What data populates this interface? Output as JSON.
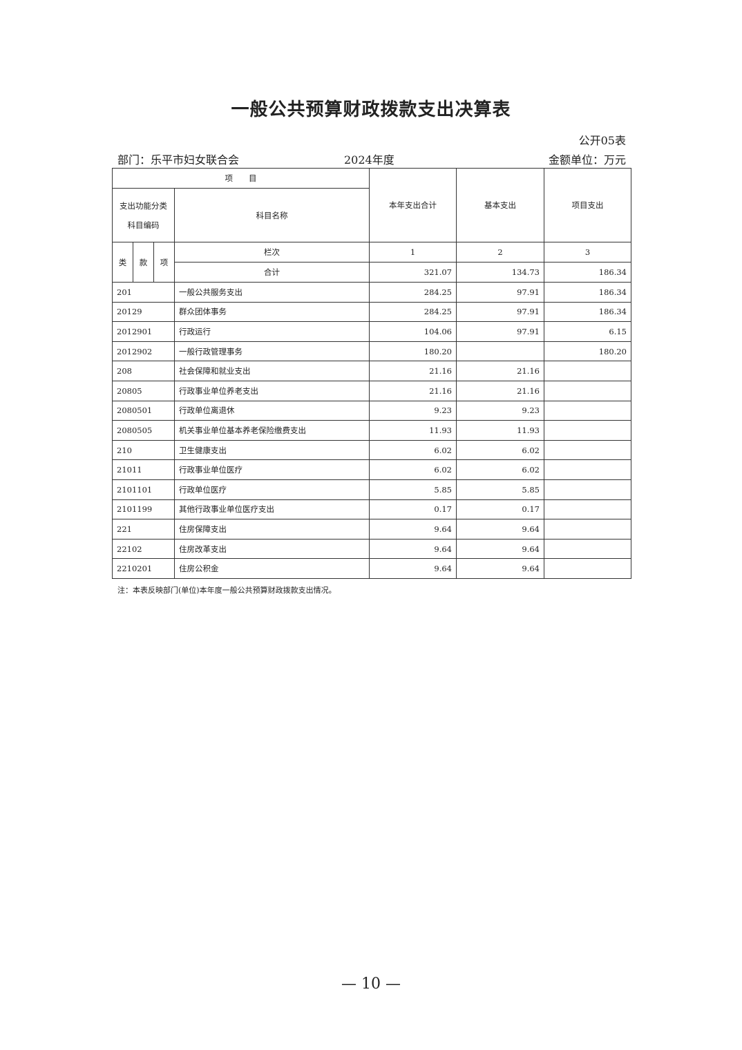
{
  "title": "一般公共预算财政拨款支出决算表",
  "form_no": "公开05表",
  "department": "部门：乐平市妇女联合会",
  "year": "2024年度",
  "unit": "金额单位：万元",
  "header": {
    "item": "项　　目",
    "code_label_1": "支出功能分类",
    "code_label_2": "科目编码",
    "name_label": "科目名称",
    "col_total": "本年支出合计",
    "col_basic": "基本支出",
    "col_project": "项目支出",
    "lei": "类",
    "kuan": "款",
    "xiang": "项",
    "lanci": "栏次",
    "col_nums": [
      "1",
      "2",
      "3"
    ],
    "sum_label": "合计",
    "sum_values": [
      "321.07",
      "134.73",
      "186.34"
    ]
  },
  "rows": [
    {
      "code": "201",
      "name": "一般公共服务支出",
      "total": "284.25",
      "basic": "97.91",
      "project": "186.34"
    },
    {
      "code": "20129",
      "name": "群众团体事务",
      "total": "284.25",
      "basic": "97.91",
      "project": "186.34"
    },
    {
      "code": "2012901",
      "name": "行政运行",
      "total": "104.06",
      "basic": "97.91",
      "project": "6.15"
    },
    {
      "code": "2012902",
      "name": "一般行政管理事务",
      "total": "180.20",
      "basic": "",
      "project": "180.20"
    },
    {
      "code": "208",
      "name": "社会保障和就业支出",
      "total": "21.16",
      "basic": "21.16",
      "project": ""
    },
    {
      "code": "20805",
      "name": "行政事业单位养老支出",
      "total": "21.16",
      "basic": "21.16",
      "project": ""
    },
    {
      "code": "2080501",
      "name": "行政单位离退休",
      "total": "9.23",
      "basic": "9.23",
      "project": ""
    },
    {
      "code": "2080505",
      "name": "机关事业单位基本养老保险缴费支出",
      "total": "11.93",
      "basic": "11.93",
      "project": ""
    },
    {
      "code": "210",
      "name": "卫生健康支出",
      "total": "6.02",
      "basic": "6.02",
      "project": ""
    },
    {
      "code": "21011",
      "name": "行政事业单位医疗",
      "total": "6.02",
      "basic": "6.02",
      "project": ""
    },
    {
      "code": "2101101",
      "name": "行政单位医疗",
      "total": "5.85",
      "basic": "5.85",
      "project": ""
    },
    {
      "code": "2101199",
      "name": "其他行政事业单位医疗支出",
      "total": "0.17",
      "basic": "0.17",
      "project": ""
    },
    {
      "code": "221",
      "name": "住房保障支出",
      "total": "9.64",
      "basic": "9.64",
      "project": ""
    },
    {
      "code": "22102",
      "name": "住房改革支出",
      "total": "9.64",
      "basic": "9.64",
      "project": ""
    },
    {
      "code": "2210201",
      "name": "住房公积金",
      "total": "9.64",
      "basic": "9.64",
      "project": ""
    }
  ],
  "note": "注：本表反映部门(单位)本年度一般公共预算财政拨款支出情况。",
  "page_number": "— 10 —"
}
